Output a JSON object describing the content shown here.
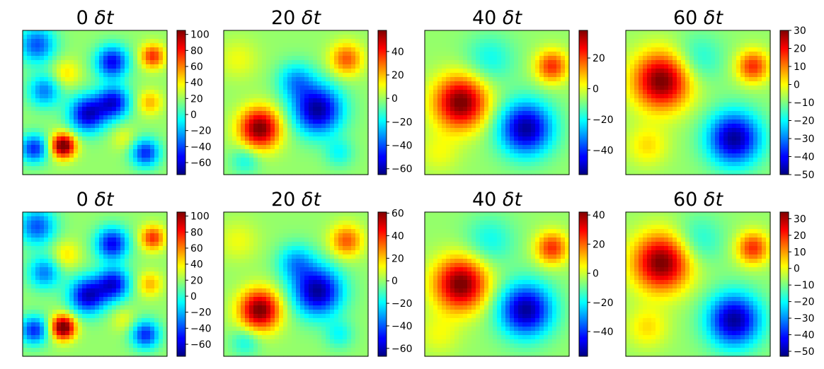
{
  "chart_data": [
    {
      "type": "heatmap",
      "row": 1,
      "col": 1,
      "title_num": "0",
      "title_unit": "δt",
      "colorbar": {
        "range": [
          -75,
          105
        ],
        "ticks": [
          100,
          80,
          60,
          40,
          20,
          0,
          -20,
          -40,
          -60
        ]
      },
      "blobs": [
        {
          "x": 0.45,
          "y": 0.58,
          "s": 0.09,
          "a": -1.0
        },
        {
          "x": 0.62,
          "y": 0.22,
          "s": 0.08,
          "a": -0.9
        },
        {
          "x": 0.63,
          "y": 0.5,
          "s": 0.08,
          "a": -0.9
        },
        {
          "x": 0.1,
          "y": 0.1,
          "s": 0.09,
          "a": -0.7
        },
        {
          "x": 0.15,
          "y": 0.42,
          "s": 0.08,
          "a": -0.6
        },
        {
          "x": 0.08,
          "y": 0.82,
          "s": 0.07,
          "a": -0.8
        },
        {
          "x": 0.85,
          "y": 0.85,
          "s": 0.07,
          "a": -0.8
        },
        {
          "x": 0.28,
          "y": 0.8,
          "s": 0.06,
          "a": 1.2
        },
        {
          "x": 0.9,
          "y": 0.18,
          "s": 0.06,
          "a": 0.7
        },
        {
          "x": 0.88,
          "y": 0.5,
          "s": 0.06,
          "a": 0.4
        },
        {
          "x": 0.3,
          "y": 0.3,
          "s": 0.07,
          "a": 0.3
        },
        {
          "x": 0.7,
          "y": 0.75,
          "s": 0.06,
          "a": 0.2
        }
      ]
    },
    {
      "type": "heatmap",
      "row": 1,
      "col": 2,
      "title_num": "20",
      "title_unit": "δt",
      "colorbar": {
        "range": [
          -65,
          58
        ],
        "ticks": [
          40,
          20,
          0,
          -20,
          -40,
          -60
        ]
      },
      "blobs": [
        {
          "x": 0.65,
          "y": 0.55,
          "s": 0.12,
          "a": -1.1
        },
        {
          "x": 0.5,
          "y": 0.35,
          "s": 0.09,
          "a": -0.5
        },
        {
          "x": 0.25,
          "y": 0.68,
          "s": 0.1,
          "a": 1.1
        },
        {
          "x": 0.85,
          "y": 0.2,
          "s": 0.08,
          "a": 0.6
        },
        {
          "x": 0.8,
          "y": 0.85,
          "s": 0.07,
          "a": -0.3
        },
        {
          "x": 0.1,
          "y": 0.2,
          "s": 0.1,
          "a": 0.2
        },
        {
          "x": 0.15,
          "y": 0.9,
          "s": 0.07,
          "a": -0.3
        }
      ]
    },
    {
      "type": "heatmap",
      "row": 1,
      "col": 3,
      "title_num": "40",
      "title_unit": "δt",
      "colorbar": {
        "range": [
          -56,
          38
        ],
        "ticks": [
          20,
          0,
          -20,
          -40
        ]
      },
      "blobs": [
        {
          "x": 0.7,
          "y": 0.68,
          "s": 0.13,
          "a": -1.1
        },
        {
          "x": 0.25,
          "y": 0.5,
          "s": 0.13,
          "a": 1.1
        },
        {
          "x": 0.88,
          "y": 0.25,
          "s": 0.08,
          "a": 0.7
        },
        {
          "x": 0.45,
          "y": 0.2,
          "s": 0.12,
          "a": -0.3
        },
        {
          "x": 0.1,
          "y": 0.85,
          "s": 0.1,
          "a": 0.2
        }
      ]
    },
    {
      "type": "heatmap",
      "row": 1,
      "col": 4,
      "title_num": "60",
      "title_unit": "δt",
      "colorbar": {
        "range": [
          -50,
          30
        ],
        "ticks": [
          30,
          20,
          10,
          0,
          -10,
          -20,
          -30,
          -40,
          -50
        ]
      },
      "blobs": [
        {
          "x": 0.75,
          "y": 0.75,
          "s": 0.13,
          "a": -1.1
        },
        {
          "x": 0.25,
          "y": 0.35,
          "s": 0.14,
          "a": 1.1
        },
        {
          "x": 0.88,
          "y": 0.25,
          "s": 0.08,
          "a": 0.7
        },
        {
          "x": 0.5,
          "y": 0.2,
          "s": 0.12,
          "a": -0.3
        },
        {
          "x": 0.15,
          "y": 0.8,
          "s": 0.1,
          "a": 0.3
        }
      ]
    },
    {
      "type": "heatmap",
      "row": 2,
      "col": 1,
      "title_num": "0",
      "title_unit": "δt",
      "colorbar": {
        "range": [
          -75,
          105
        ],
        "ticks": [
          100,
          80,
          60,
          40,
          20,
          0,
          -20,
          -40,
          -60
        ]
      },
      "blobs": [
        {
          "x": 0.45,
          "y": 0.58,
          "s": 0.09,
          "a": -1.0
        },
        {
          "x": 0.62,
          "y": 0.22,
          "s": 0.08,
          "a": -0.9
        },
        {
          "x": 0.63,
          "y": 0.5,
          "s": 0.08,
          "a": -0.9
        },
        {
          "x": 0.1,
          "y": 0.1,
          "s": 0.09,
          "a": -0.7
        },
        {
          "x": 0.15,
          "y": 0.42,
          "s": 0.08,
          "a": -0.6
        },
        {
          "x": 0.08,
          "y": 0.82,
          "s": 0.07,
          "a": -0.8
        },
        {
          "x": 0.85,
          "y": 0.85,
          "s": 0.07,
          "a": -0.8
        },
        {
          "x": 0.28,
          "y": 0.8,
          "s": 0.06,
          "a": 1.2
        },
        {
          "x": 0.9,
          "y": 0.18,
          "s": 0.06,
          "a": 0.7
        },
        {
          "x": 0.88,
          "y": 0.5,
          "s": 0.06,
          "a": 0.4
        },
        {
          "x": 0.3,
          "y": 0.3,
          "s": 0.07,
          "a": 0.3
        },
        {
          "x": 0.7,
          "y": 0.75,
          "s": 0.06,
          "a": 0.2
        }
      ]
    },
    {
      "type": "heatmap",
      "row": 2,
      "col": 2,
      "title_num": "20",
      "title_unit": "δt",
      "colorbar": {
        "range": [
          -67,
          61
        ],
        "ticks": [
          60,
          40,
          20,
          0,
          -20,
          -40,
          -60
        ]
      },
      "blobs": [
        {
          "x": 0.65,
          "y": 0.55,
          "s": 0.12,
          "a": -1.1
        },
        {
          "x": 0.5,
          "y": 0.35,
          "s": 0.09,
          "a": -0.5
        },
        {
          "x": 0.25,
          "y": 0.68,
          "s": 0.1,
          "a": 1.1
        },
        {
          "x": 0.85,
          "y": 0.2,
          "s": 0.08,
          "a": 0.6
        },
        {
          "x": 0.8,
          "y": 0.85,
          "s": 0.07,
          "a": -0.3
        },
        {
          "x": 0.1,
          "y": 0.2,
          "s": 0.1,
          "a": 0.2
        },
        {
          "x": 0.15,
          "y": 0.9,
          "s": 0.07,
          "a": -0.3
        }
      ]
    },
    {
      "type": "heatmap",
      "row": 2,
      "col": 3,
      "title_num": "40",
      "title_unit": "δt",
      "colorbar": {
        "range": [
          -57,
          42
        ],
        "ticks": [
          40,
          20,
          0,
          -20,
          -40
        ]
      },
      "blobs": [
        {
          "x": 0.7,
          "y": 0.68,
          "s": 0.13,
          "a": -1.1
        },
        {
          "x": 0.25,
          "y": 0.5,
          "s": 0.13,
          "a": 1.1
        },
        {
          "x": 0.88,
          "y": 0.25,
          "s": 0.08,
          "a": 0.7
        },
        {
          "x": 0.45,
          "y": 0.2,
          "s": 0.12,
          "a": -0.3
        },
        {
          "x": 0.1,
          "y": 0.85,
          "s": 0.1,
          "a": 0.2
        }
      ]
    },
    {
      "type": "heatmap",
      "row": 2,
      "col": 4,
      "title_num": "60",
      "title_unit": "δt",
      "colorbar": {
        "range": [
          -53,
          34
        ],
        "ticks": [
          30,
          20,
          10,
          0,
          -10,
          -20,
          -30,
          -40,
          -50
        ]
      },
      "blobs": [
        {
          "x": 0.75,
          "y": 0.75,
          "s": 0.13,
          "a": -1.1
        },
        {
          "x": 0.25,
          "y": 0.35,
          "s": 0.14,
          "a": 1.1
        },
        {
          "x": 0.88,
          "y": 0.25,
          "s": 0.08,
          "a": 0.7
        },
        {
          "x": 0.5,
          "y": 0.2,
          "s": 0.12,
          "a": -0.3
        },
        {
          "x": 0.15,
          "y": 0.8,
          "s": 0.1,
          "a": 0.3
        }
      ]
    }
  ]
}
